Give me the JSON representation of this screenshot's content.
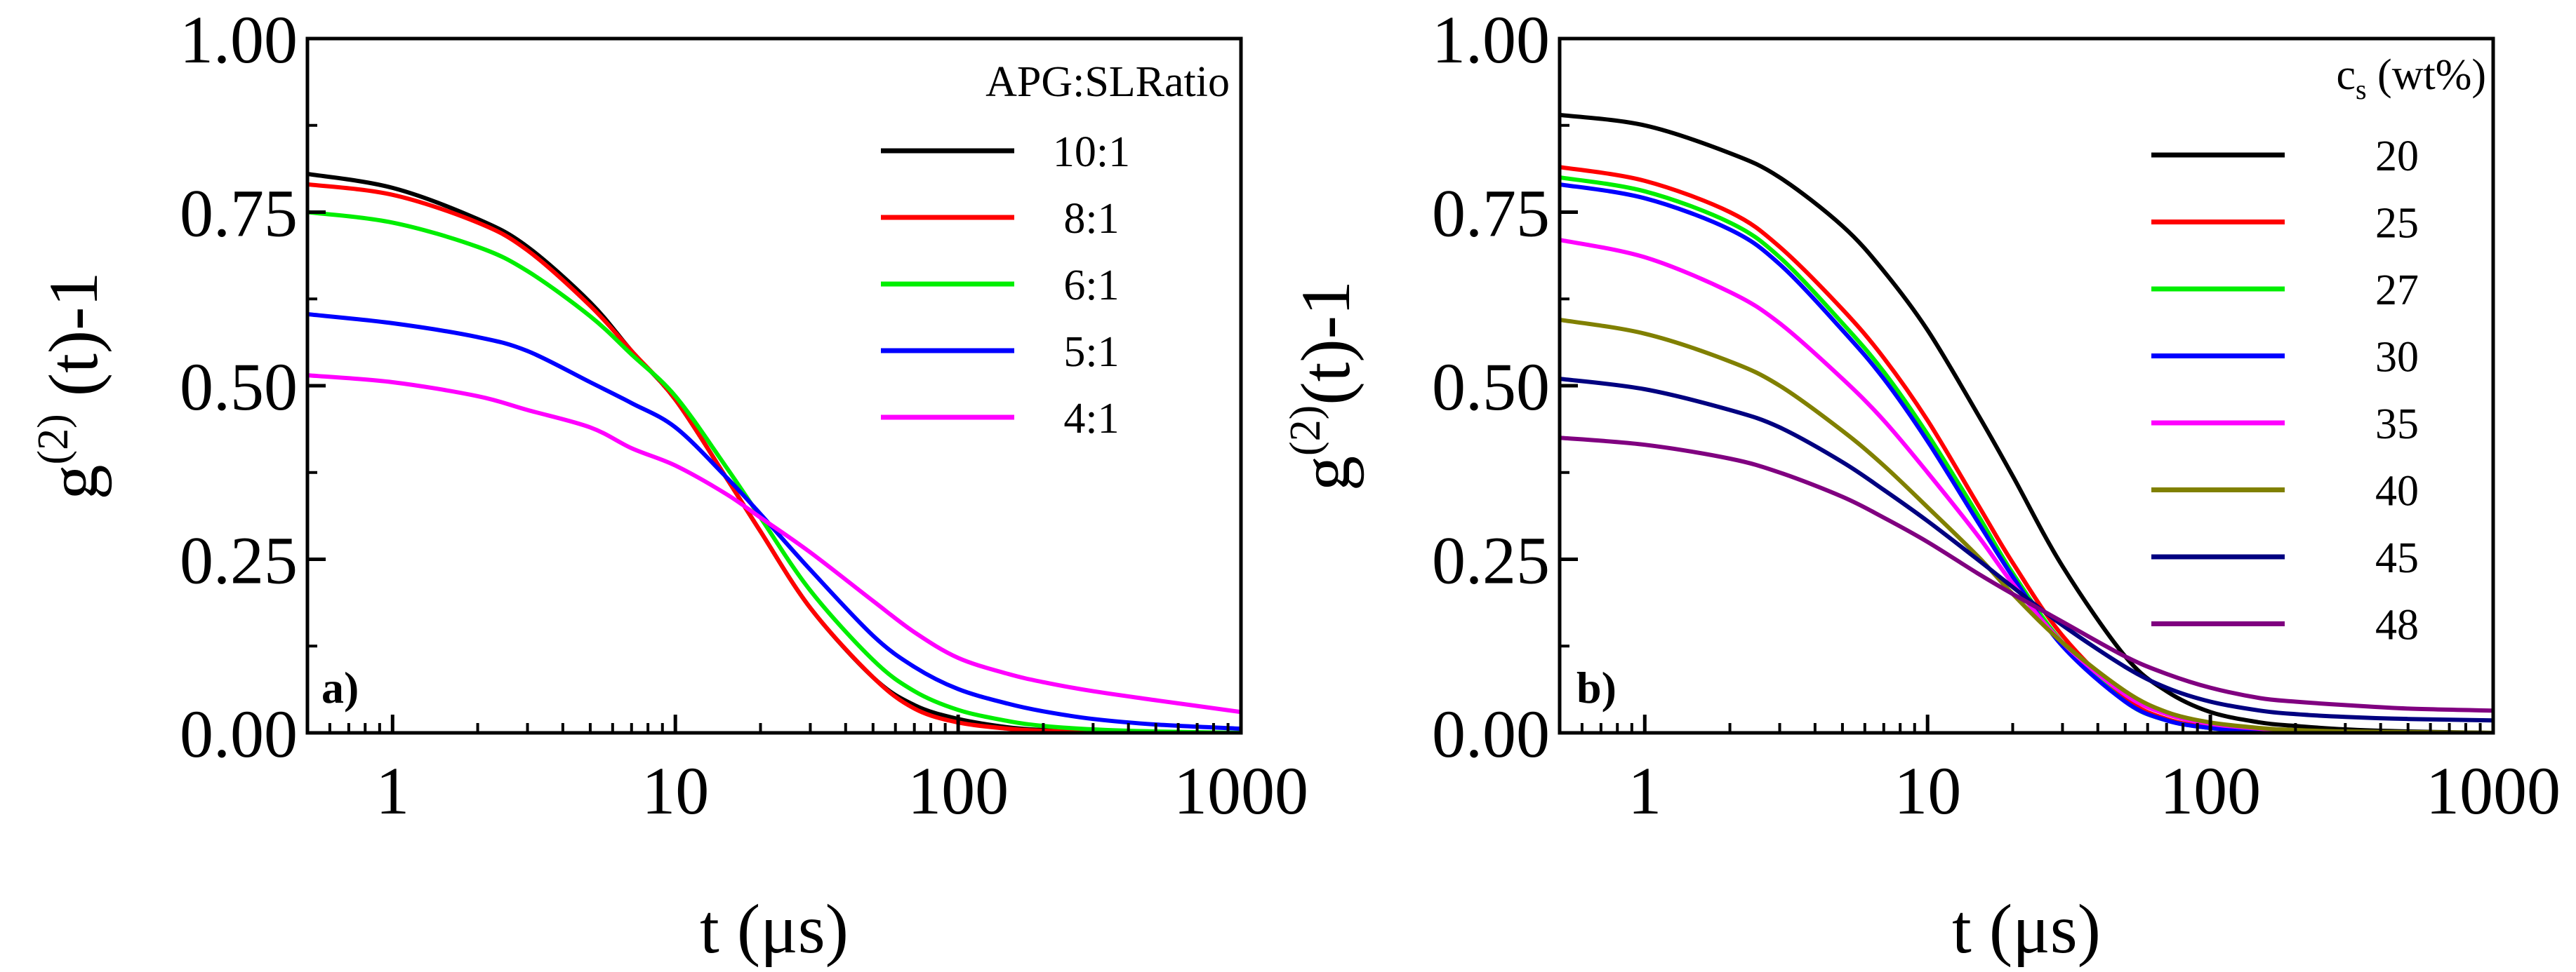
{
  "chart_data": [
    {
      "type": "line",
      "panel_label": "a)",
      "xlabel": "t (μs)",
      "ylabel_parts": {
        "g": "g",
        "sup": "(2)",
        "rest": " (t)-1"
      },
      "xscale": "log",
      "xlim": [
        0.5,
        1000
      ],
      "ylim": [
        0,
        1
      ],
      "xticks": [
        1,
        10,
        100,
        1000
      ],
      "xtick_labels": [
        "1",
        "10",
        "100",
        "1000"
      ],
      "yticks": [
        0,
        0.25,
        0.5,
        0.75,
        1.0
      ],
      "ytick_labels": [
        "0.00",
        "0.25",
        "0.50",
        "0.75",
        "1.00"
      ],
      "legend": {
        "title": "APG:SLRatio",
        "placement": "top-right"
      },
      "series": [
        {
          "name": "10:1",
          "color": "#000000",
          "x": [
            0.5,
            1,
            2,
            3,
            5,
            7,
            10,
            15,
            20,
            30,
            50,
            70,
            100,
            150,
            200,
            300,
            500,
            1000
          ],
          "y": [
            0.805,
            0.785,
            0.74,
            0.7,
            0.62,
            0.55,
            0.48,
            0.37,
            0.29,
            0.18,
            0.08,
            0.04,
            0.02,
            0.008,
            0.004,
            0.001,
            0.0,
            0.0
          ]
        },
        {
          "name": "8:1",
          "color": "#ff0000",
          "x": [
            0.5,
            1,
            2,
            3,
            5,
            7,
            10,
            15,
            20,
            30,
            50,
            70,
            100,
            150,
            200,
            300,
            500,
            1000
          ],
          "y": [
            0.79,
            0.775,
            0.735,
            0.695,
            0.615,
            0.55,
            0.48,
            0.37,
            0.29,
            0.18,
            0.08,
            0.035,
            0.015,
            0.006,
            0.003,
            0.001,
            0.0,
            0.0
          ]
        },
        {
          "name": "6:1",
          "color": "#00ee00",
          "x": [
            0.5,
            1,
            2,
            3,
            5,
            7,
            10,
            15,
            20,
            30,
            50,
            70,
            100,
            150,
            200,
            300,
            500,
            1000
          ],
          "y": [
            0.75,
            0.735,
            0.7,
            0.665,
            0.6,
            0.545,
            0.485,
            0.385,
            0.31,
            0.205,
            0.105,
            0.06,
            0.033,
            0.017,
            0.01,
            0.005,
            0.002,
            0.0
          ]
        },
        {
          "name": "5:1",
          "color": "#0000ff",
          "x": [
            0.5,
            1,
            2,
            3,
            5,
            7,
            10,
            15,
            20,
            30,
            50,
            70,
            100,
            150,
            200,
            300,
            500,
            1000
          ],
          "y": [
            0.603,
            0.59,
            0.57,
            0.55,
            0.505,
            0.475,
            0.44,
            0.37,
            0.315,
            0.235,
            0.14,
            0.095,
            0.063,
            0.042,
            0.031,
            0.02,
            0.012,
            0.006
          ]
        },
        {
          "name": "4:1",
          "color": "#ff00ff",
          "x": [
            0.5,
            1,
            2,
            3,
            5,
            7,
            10,
            15,
            20,
            30,
            50,
            70,
            100,
            150,
            200,
            300,
            500,
            1000
          ],
          "y": [
            0.515,
            0.505,
            0.485,
            0.465,
            0.44,
            0.41,
            0.385,
            0.345,
            0.31,
            0.26,
            0.19,
            0.145,
            0.108,
            0.085,
            0.073,
            0.06,
            0.047,
            0.03
          ]
        }
      ]
    },
    {
      "type": "line",
      "panel_label": "b)",
      "xlabel": "t (μs)",
      "ylabel_parts": {
        "g": "g",
        "sup": "(2)",
        "rest": "(t)-1"
      },
      "xscale": "log",
      "xlim": [
        0.5,
        1000
      ],
      "ylim": [
        0,
        1
      ],
      "xticks": [
        1,
        10,
        100,
        1000
      ],
      "xtick_labels": [
        "1",
        "10",
        "100",
        "1000"
      ],
      "yticks": [
        0,
        0.25,
        0.5,
        0.75,
        1.0
      ],
      "ytick_labels": [
        "0.00",
        "0.25",
        "0.50",
        "0.75",
        "1.00"
      ],
      "legend": {
        "title_main": "c",
        "title_sub": "s",
        "title_rest": " (wt%)",
        "placement": "top-right"
      },
      "series": [
        {
          "name": "20",
          "color": "#000000",
          "x": [
            0.5,
            1,
            2,
            3,
            5,
            7,
            10,
            15,
            20,
            30,
            50,
            70,
            100,
            150,
            200,
            300,
            500,
            1000
          ],
          "y": [
            0.89,
            0.875,
            0.835,
            0.8,
            0.73,
            0.665,
            0.58,
            0.46,
            0.37,
            0.24,
            0.11,
            0.06,
            0.03,
            0.015,
            0.01,
            0.005,
            0.002,
            0.0
          ]
        },
        {
          "name": "25",
          "color": "#ff0000",
          "x": [
            0.5,
            1,
            2,
            3,
            5,
            7,
            10,
            15,
            20,
            30,
            50,
            70,
            100,
            150,
            200,
            300,
            500,
            1000
          ],
          "y": [
            0.815,
            0.795,
            0.75,
            0.7,
            0.61,
            0.54,
            0.45,
            0.33,
            0.245,
            0.14,
            0.05,
            0.02,
            0.008,
            0.003,
            0.001,
            0.0,
            0.0,
            0.0
          ]
        },
        {
          "name": "27",
          "color": "#00ee00",
          "x": [
            0.5,
            1,
            2,
            3,
            5,
            7,
            10,
            15,
            20,
            30,
            50,
            70,
            100,
            150,
            200,
            300,
            500,
            1000
          ],
          "y": [
            0.8,
            0.78,
            0.735,
            0.685,
            0.59,
            0.52,
            0.43,
            0.315,
            0.23,
            0.13,
            0.045,
            0.018,
            0.007,
            0.002,
            0.001,
            0.0,
            0.0,
            0.0
          ]
        },
        {
          "name": "30",
          "color": "#0000ff",
          "x": [
            0.5,
            1,
            2,
            3,
            5,
            7,
            10,
            15,
            20,
            30,
            50,
            70,
            100,
            150,
            200,
            300,
            500,
            1000
          ],
          "y": [
            0.79,
            0.77,
            0.725,
            0.675,
            0.58,
            0.51,
            0.42,
            0.305,
            0.225,
            0.125,
            0.045,
            0.018,
            0.007,
            0.002,
            0.001,
            0.0,
            0.0,
            0.0
          ]
        },
        {
          "name": "35",
          "color": "#ff00ff",
          "x": [
            0.5,
            1,
            2,
            3,
            5,
            7,
            10,
            15,
            20,
            30,
            50,
            70,
            100,
            150,
            200,
            300,
            500,
            1000
          ],
          "y": [
            0.71,
            0.685,
            0.635,
            0.59,
            0.51,
            0.45,
            0.375,
            0.285,
            0.215,
            0.13,
            0.055,
            0.027,
            0.013,
            0.006,
            0.003,
            0.001,
            0.0,
            0.0
          ]
        },
        {
          "name": "40",
          "color": "#808000",
          "x": [
            0.5,
            1,
            2,
            3,
            5,
            7,
            10,
            15,
            20,
            30,
            50,
            70,
            100,
            150,
            200,
            300,
            500,
            1000
          ],
          "y": [
            0.595,
            0.575,
            0.535,
            0.5,
            0.435,
            0.385,
            0.325,
            0.255,
            0.2,
            0.13,
            0.06,
            0.03,
            0.015,
            0.007,
            0.004,
            0.002,
            0.001,
            0.0
          ]
        },
        {
          "name": "45",
          "color": "#000080",
          "x": [
            0.5,
            1,
            2,
            3,
            5,
            7,
            10,
            15,
            20,
            30,
            50,
            70,
            100,
            150,
            200,
            300,
            500,
            1000
          ],
          "y": [
            0.51,
            0.495,
            0.465,
            0.44,
            0.39,
            0.35,
            0.305,
            0.25,
            0.21,
            0.155,
            0.095,
            0.065,
            0.045,
            0.032,
            0.027,
            0.023,
            0.02,
            0.018
          ]
        },
        {
          "name": "48",
          "color": "#800080",
          "x": [
            0.5,
            1,
            2,
            3,
            5,
            7,
            10,
            15,
            20,
            30,
            50,
            70,
            100,
            150,
            200,
            300,
            500,
            1000
          ],
          "y": [
            0.425,
            0.415,
            0.395,
            0.375,
            0.34,
            0.31,
            0.275,
            0.23,
            0.2,
            0.16,
            0.11,
            0.085,
            0.065,
            0.05,
            0.045,
            0.04,
            0.035,
            0.032
          ]
        }
      ]
    }
  ]
}
